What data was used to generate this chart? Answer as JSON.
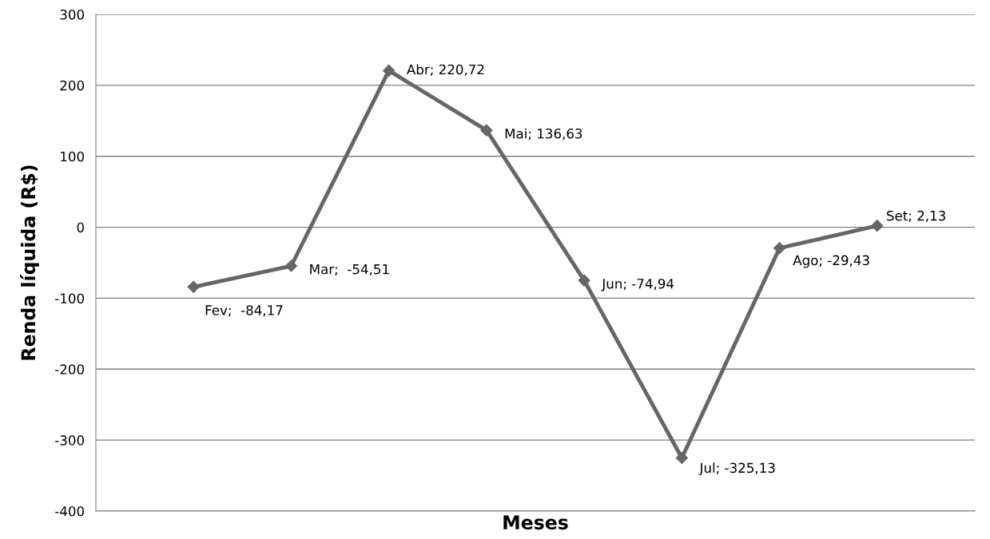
{
  "chart_data": {
    "type": "line",
    "xlabel": "Meses",
    "ylabel": "Renda líquida (R$)",
    "categories": [
      null,
      null,
      null,
      null,
      null,
      null,
      null,
      null
    ],
    "series": [
      {
        "color": "#666666",
        "values": [
          -84.17,
          -54.51,
          220.72,
          136.63,
          -74.94,
          -325.13,
          -29.43,
          2.13
        ],
        "value_labels": [
          "Fev;  -84,17",
          "Mar;  -54,51",
          "Abr; 220,72",
          "Mai; 136,63",
          "Jun; -74,94",
          "Jul; -325,13",
          "Ago; -29,43",
          "Set; 2,13"
        ]
      }
    ],
    "ylim": [
      -400,
      300
    ],
    "yticks": [
      -400,
      -300,
      -200,
      -100,
      0,
      100,
      200,
      300
    ],
    "grid": "y",
    "marker": "diamond",
    "line_style": "solid",
    "legend": false
  }
}
